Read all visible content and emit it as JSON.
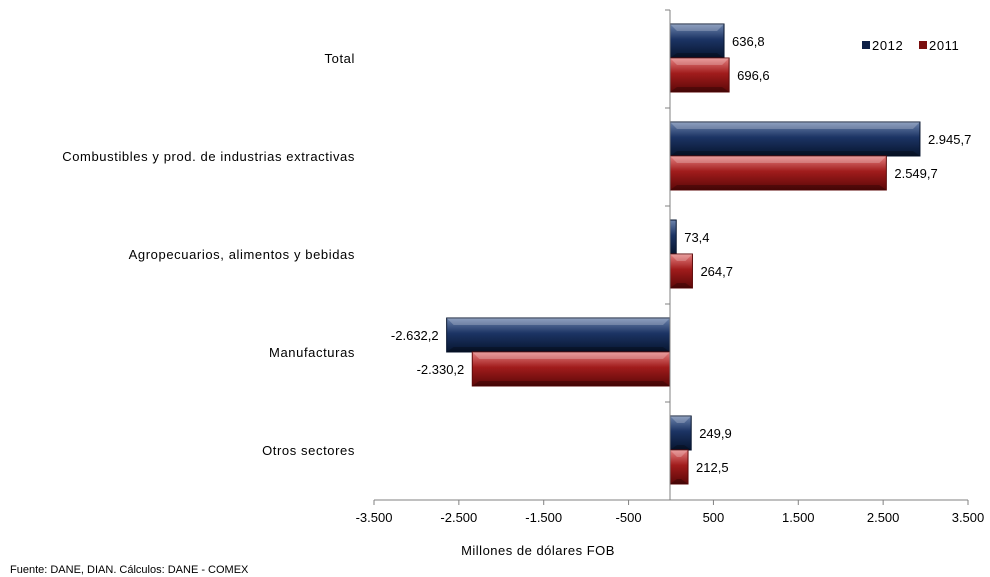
{
  "chart_data": {
    "type": "bar",
    "orientation": "horizontal",
    "categories": [
      "Total",
      "Combustibles y prod. de industrias extractivas",
      "Agropecuarios, alimentos y bebidas",
      "Manufacturas",
      "Otros sectores"
    ],
    "series": [
      {
        "name": "2012",
        "values": [
          636.8,
          2945.7,
          73.4,
          -2632.2,
          249.9
        ],
        "labels": [
          "636,8",
          "2.945,7",
          "73,4",
          "-2.632,2",
          "249,9"
        ],
        "color": "#0d1f45"
      },
      {
        "name": "2011",
        "values": [
          696.6,
          2549.7,
          264.7,
          -2330.2,
          212.5
        ],
        "labels": [
          "696,6",
          "2.549,7",
          "264,7",
          "-2.330,2",
          "212,5"
        ],
        "color": "#7a0f0f"
      }
    ],
    "xlim": [
      -3500,
      3500
    ],
    "xticks": [
      -3500,
      -2500,
      -1500,
      -500,
      500,
      1500,
      2500,
      3500
    ],
    "xtick_labels": [
      "-3.500",
      "-2.500",
      "-1.500",
      "-500",
      "500",
      "1.500",
      "2.500",
      "3.500"
    ],
    "xlabel": "Millones  de dólares FOB",
    "ylabel": "",
    "title": "",
    "grid": false,
    "legend": "top-right",
    "legend_entries": [
      "2012",
      "2011"
    ]
  },
  "source": "Fuente: DANE,  DIAN. Cálculos: DANE - COMEX"
}
